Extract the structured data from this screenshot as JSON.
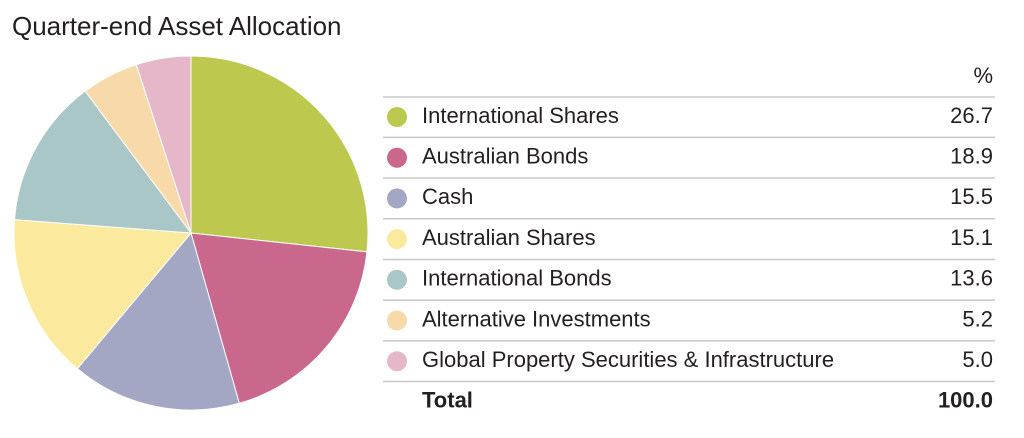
{
  "chart_data": {
    "type": "pie",
    "title": "Quarter-end Asset Allocation",
    "value_header": "%",
    "categories": [
      "International Shares",
      "Australian Bonds",
      "Cash",
      "Australian Shares",
      "International Bonds",
      "Alternative Investments",
      "Global Property Securities & Infrastructure"
    ],
    "values": [
      26.7,
      18.9,
      15.5,
      15.1,
      13.6,
      5.2,
      5.0
    ],
    "value_labels": [
      "26.7",
      "18.9",
      "15.5",
      "15.1",
      "13.6",
      "5.2",
      "5.0"
    ],
    "colors": [
      "#bcc94e",
      "#c9688c",
      "#a4a7c3",
      "#fbe99e",
      "#a8c7c6",
      "#f8d9aa",
      "#e6b6c9"
    ],
    "total": {
      "label": "Total",
      "value": 100,
      "value_label": "100.0"
    }
  }
}
